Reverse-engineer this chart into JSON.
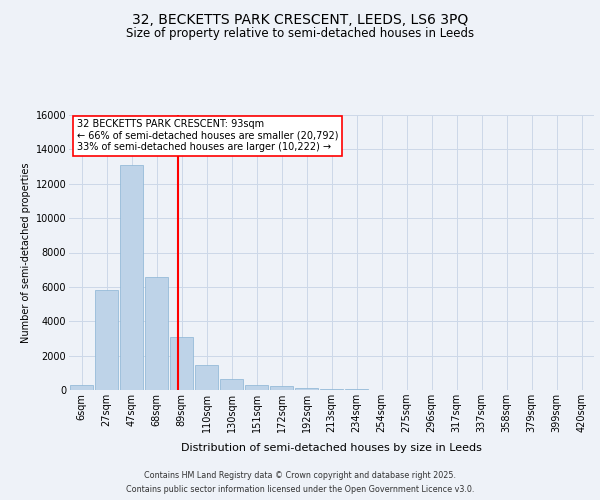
{
  "title_line1": "32, BECKETTS PARK CRESCENT, LEEDS, LS6 3PQ",
  "title_line2": "Size of property relative to semi-detached houses in Leeds",
  "xlabel": "Distribution of semi-detached houses by size in Leeds",
  "ylabel": "Number of semi-detached properties",
  "categories": [
    "6sqm",
    "27sqm",
    "47sqm",
    "68sqm",
    "89sqm",
    "110sqm",
    "130sqm",
    "151sqm",
    "172sqm",
    "192sqm",
    "213sqm",
    "234sqm",
    "254sqm",
    "275sqm",
    "296sqm",
    "317sqm",
    "337sqm",
    "358sqm",
    "379sqm",
    "399sqm",
    "420sqm"
  ],
  "values": [
    300,
    5800,
    13100,
    6600,
    3100,
    1450,
    620,
    280,
    220,
    100,
    60,
    30,
    10,
    5,
    2,
    1,
    0,
    0,
    0,
    0,
    0
  ],
  "bar_color": "#bed3e8",
  "bar_edge_color": "#8ab4d4",
  "grid_color": "#ccd8e8",
  "background_color": "#eef2f8",
  "annotation_text_line1": "32 BECKETTS PARK CRESCENT: 93sqm",
  "annotation_text_line2": "← 66% of semi-detached houses are smaller (20,792)",
  "annotation_text_line3": "33% of semi-detached houses are larger (10,222) →",
  "property_line_bin": 4,
  "ylim": [
    0,
    16000
  ],
  "yticks": [
    0,
    2000,
    4000,
    6000,
    8000,
    10000,
    12000,
    14000,
    16000
  ],
  "footer_line1": "Contains HM Land Registry data © Crown copyright and database right 2025.",
  "footer_line2": "Contains public sector information licensed under the Open Government Licence v3.0."
}
